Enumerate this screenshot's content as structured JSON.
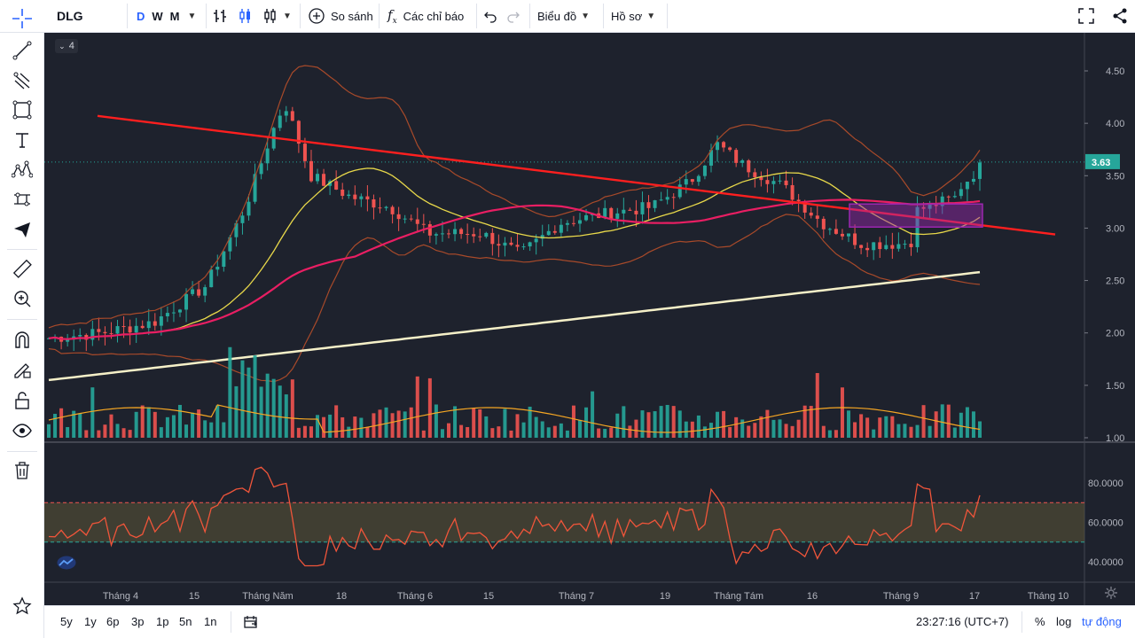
{
  "symbol": "DLG",
  "intervals": [
    "D",
    "W",
    "M"
  ],
  "active_interval": "D",
  "toolbar": {
    "compare_label": "So sánh",
    "indicators_label": "Các chỉ báo",
    "chart_label": "Biểu đồ",
    "profile_label": "Hồ sơ"
  },
  "legend_count": "4",
  "price_axis": [
    "4.50",
    "4.00",
    "3.50",
    "3.00",
    "2.50",
    "2.00",
    "1.50",
    "1.00"
  ],
  "current_price": "3.63",
  "rsi_axis": [
    "80.0000",
    "60.0000",
    "40.0000"
  ],
  "time_axis": [
    "Tháng 4",
    "15",
    "Tháng Năm",
    "18",
    "Tháng 6",
    "15",
    "Tháng 7",
    "19",
    "Tháng Tám",
    "16",
    "Tháng 9",
    "17",
    "Tháng 10"
  ],
  "ranges": [
    "5y",
    "1y",
    "6p",
    "3p",
    "1p",
    "5n",
    "1n"
  ],
  "clock": "23:27:16 (UTC+7)",
  "scale_options": [
    "%",
    "log",
    "tự động"
  ],
  "colors": {
    "background": "#1e222d",
    "up": "#26a69a",
    "down": "#ef5350",
    "accent": "#2962ff",
    "trendline": "#ff1f1f",
    "ma_fast": "#e8d84a",
    "ma_mid": "#e91e63",
    "ma_slow": "#f5f0c8",
    "bollinger": "#a84a2a",
    "rsi": "#f0553a",
    "rectangle": "#9c27b0",
    "price_label": "#26a69a"
  },
  "icons": {
    "left_toolbar": [
      "crosshair-icon",
      "trendline-icon",
      "pitchfork-icon",
      "rectangle-icon",
      "text-icon",
      "pattern-icon",
      "prediction-icon",
      "airplane-icon",
      "ruler-icon",
      "zoom-in-icon",
      "magnet-icon",
      "lock-drawings-icon",
      "unlock-icon",
      "eye-icon",
      "trash-icon",
      "star-icon"
    ],
    "top_right": [
      "fullscreen-icon",
      "share-icon"
    ]
  }
}
